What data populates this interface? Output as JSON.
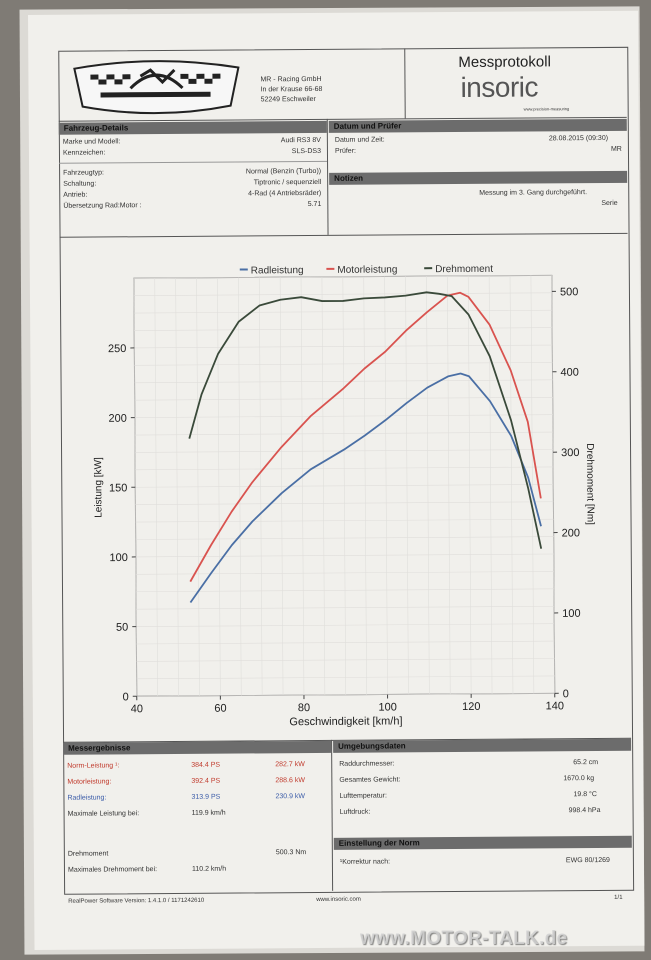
{
  "header": {
    "company": [
      "MR - Racing GmbH",
      "In der Krause 66-68",
      "52249 Eschweiler"
    ],
    "protocol_title": "Messprotokoll",
    "brand": "insoric",
    "brand_tagline": "www.precision-measuring"
  },
  "vehicle": {
    "section_title": "Fahrzeug-Details",
    "rows": [
      {
        "label": "Marke und Modell:",
        "value": "Audi RS3 8V"
      },
      {
        "label": "Kennzeichen:",
        "value": "SLS-DS3"
      },
      {
        "label": "Fahrzeugtyp:",
        "value": "Normal (Benzin (Turbo))"
      },
      {
        "label": "Schaltung:",
        "value": "Tiptronic / sequenziell"
      },
      {
        "label": "Antrieb:",
        "value": "4-Rad (4 Antriebsräder)"
      },
      {
        "label": "Übersetzung Rad:Motor :",
        "value": "5.71"
      }
    ]
  },
  "date": {
    "section_title": "Datum und Prüfer",
    "rows": [
      {
        "label": "Datum und Zeit:",
        "value": "28.08.2015 (09:30)"
      },
      {
        "label": "Prüfer:",
        "value": "MR"
      }
    ]
  },
  "notes": {
    "section_title": "Notizen",
    "lines": [
      "Messung im 3. Gang durchgeführt.",
      "Serie"
    ]
  },
  "results": {
    "section_title": "Messergebnisse",
    "rows": [
      {
        "label": "Norm-Leistung ¹:",
        "ps": "384.4 PS",
        "kw": "282.7 kW"
      },
      {
        "label": "Motorleistung:",
        "ps": "392.4 PS",
        "kw": "288.6 kW"
      },
      {
        "label": "Radleistung:",
        "ps": "313.9 PS",
        "kw": "230.9 kW"
      }
    ],
    "max_power_label": "Maximale Leistung bei:",
    "max_power_value": "119.9 km/h",
    "torque_label": "Drehmoment",
    "torque_value": "500.3 Nm",
    "max_torque_label": "Maximales Drehmoment bei:",
    "max_torque_value": "110.2 km/h"
  },
  "environment": {
    "section_title": "Umgebungsdaten",
    "rows": [
      {
        "label": "Raddurchmesser:",
        "value": "65.2 cm"
      },
      {
        "label": "Gesamtes Gewicht:",
        "value": "1670.0 kg"
      },
      {
        "label": "Lufttemperatur:",
        "value": "19.8 °C"
      },
      {
        "label": "Luftdruck:",
        "value": "998.4 hPa"
      }
    ]
  },
  "norm": {
    "section_title": "Einstellung der Norm",
    "label": "¹Korrektur nach:",
    "value": "EWG 80/1269"
  },
  "footer": {
    "software": "RealPower Software Version: 1.4.1.0 / 1171242610",
    "website": "www.insoric.com",
    "page": "1/1"
  },
  "watermark": "www.MOTOR-TALK.de",
  "colors": {
    "radleistung": "#4a6fa5",
    "motorleistung": "#d9534f",
    "drehmoment": "#3a4a3a"
  },
  "chart_data": {
    "type": "line",
    "xlabel": "Geschwindigkeit [km/h]",
    "ylabel": "Leistung [kW]",
    "y2label": "Drehmoment [Nm]",
    "xlim": [
      40,
      140
    ],
    "ylim": [
      0,
      300
    ],
    "y2lim": [
      0,
      520
    ],
    "xticks": [
      40,
      60,
      80,
      100,
      120,
      140
    ],
    "yticks": [
      0,
      50,
      100,
      150,
      200,
      250
    ],
    "y2ticks": [
      0,
      100,
      200,
      300,
      400,
      500
    ],
    "grid": true,
    "legend": "top-center",
    "series": [
      {
        "name": "Radleistung",
        "axis": "left",
        "x": [
          53,
          58,
          63,
          68,
          75,
          82,
          90,
          95,
          100,
          105,
          110,
          115,
          118,
          120,
          125,
          130,
          134,
          137
        ],
        "y": [
          67,
          88,
          108,
          125,
          145,
          162,
          176,
          186,
          197,
          209,
          220,
          228,
          230,
          228,
          210,
          185,
          155,
          120
        ]
      },
      {
        "name": "Motorleistung",
        "axis": "left",
        "x": [
          53,
          58,
          63,
          68,
          75,
          82,
          90,
          95,
          100,
          105,
          110,
          115,
          118,
          120,
          125,
          130,
          134,
          137
        ],
        "y": [
          82,
          108,
          132,
          153,
          178,
          200,
          220,
          234,
          246,
          261,
          274,
          286,
          288,
          285,
          265,
          232,
          195,
          140
        ]
      },
      {
        "name": "Drehmoment",
        "axis": "right",
        "x": [
          53,
          56,
          60,
          65,
          70,
          75,
          80,
          85,
          90,
          95,
          100,
          105,
          110,
          113,
          116,
          120,
          125,
          130,
          134,
          137
        ],
        "y": [
          320,
          375,
          425,
          465,
          485,
          492,
          495,
          490,
          490,
          493,
          494,
          496,
          500,
          498,
          495,
          472,
          420,
          340,
          255,
          180
        ]
      }
    ]
  }
}
